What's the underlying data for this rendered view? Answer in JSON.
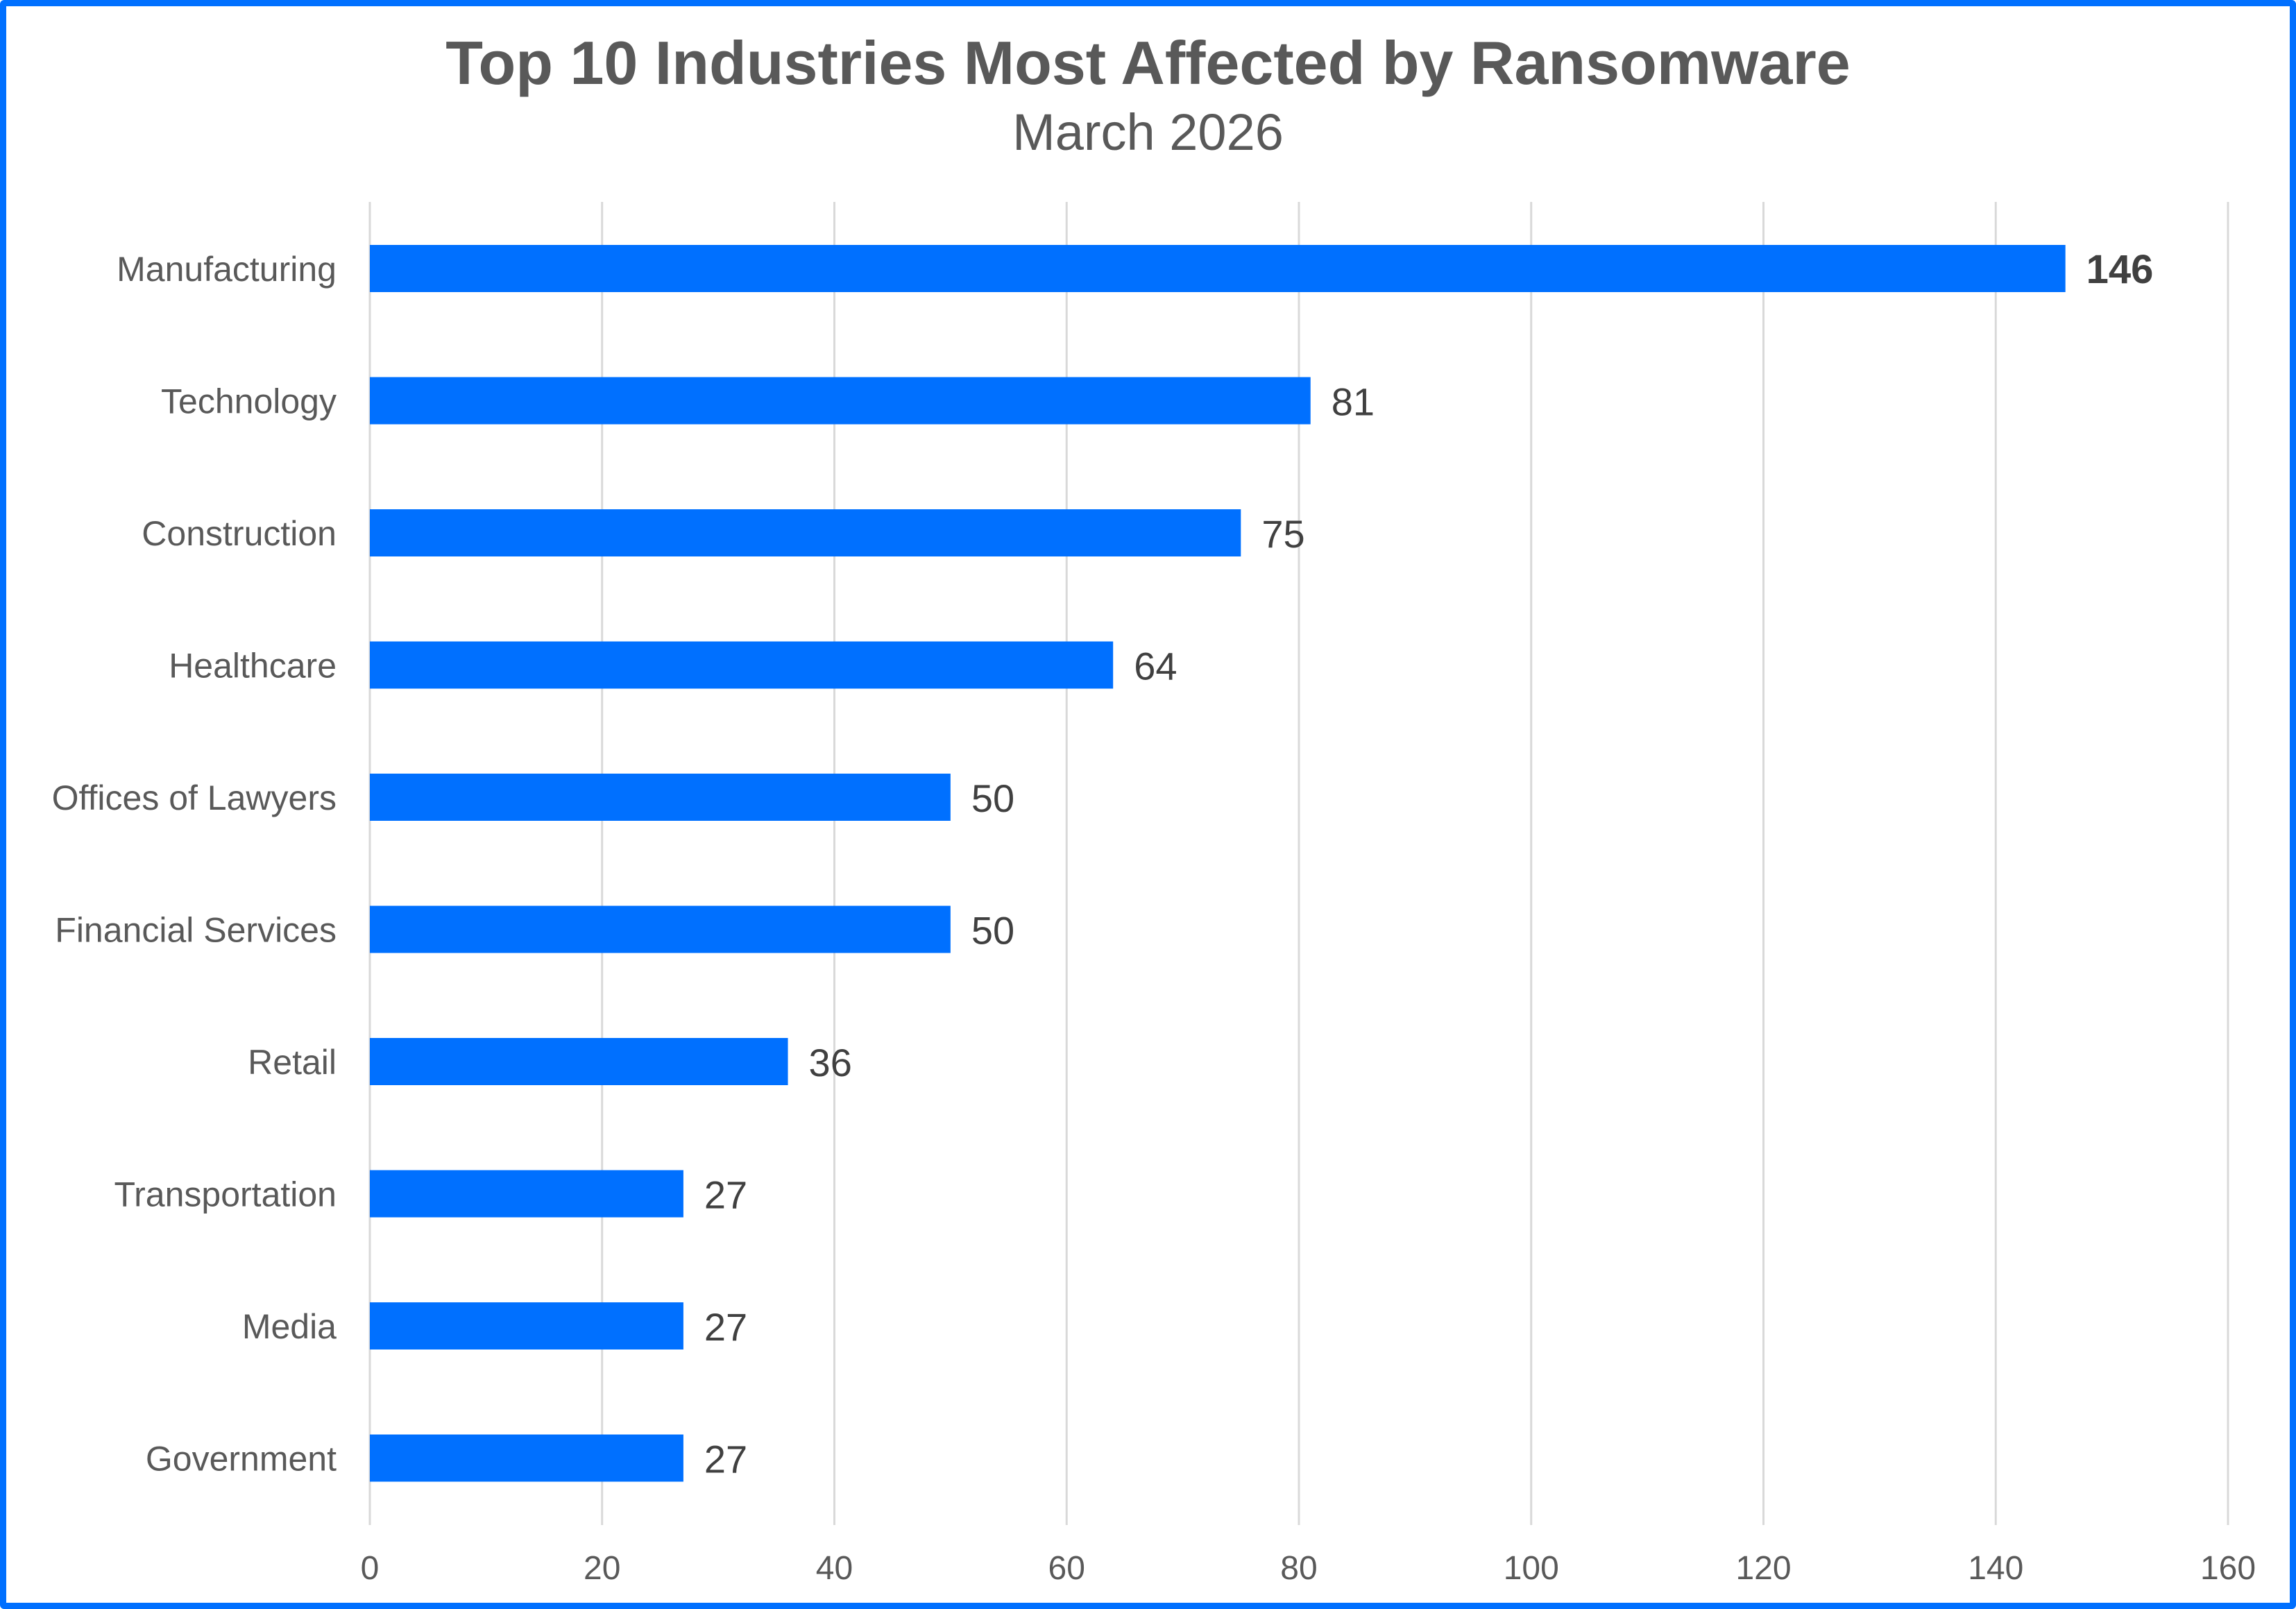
{
  "chart_data": {
    "type": "bar",
    "orientation": "horizontal",
    "title": "Top 10 Industries Most Affected by Ransomware",
    "subtitle": "March 2026",
    "categories": [
      "Manufacturing",
      "Technology",
      "Construction",
      "Healthcare",
      "Offices of Lawyers",
      "Financial Services",
      "Retail",
      "Transportation",
      "Media",
      "Government"
    ],
    "values": [
      146,
      81,
      75,
      64,
      50,
      50,
      36,
      27,
      27,
      27
    ],
    "xlim": [
      0,
      160
    ],
    "xticks": [
      0,
      20,
      40,
      60,
      80,
      100,
      120,
      140,
      160
    ],
    "xlabel": "",
    "ylabel": "",
    "grid": "vertical",
    "legend": "none",
    "data_labels": true,
    "bar_color": "#0070FF",
    "border_color": "#0070FF"
  }
}
